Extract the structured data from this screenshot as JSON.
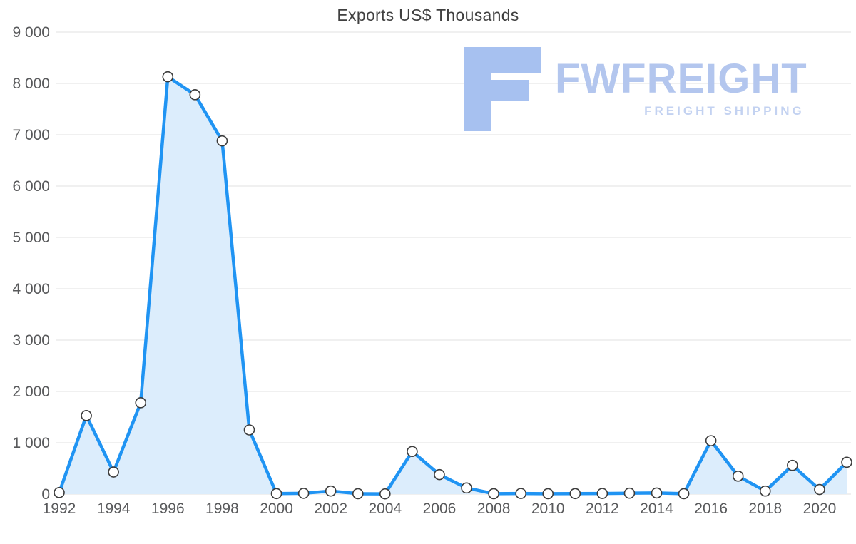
{
  "watermark": {
    "brand": "FWFREIGHT",
    "tagline": "FREIGHT SHIPPING"
  },
  "chart_data": {
    "type": "area",
    "title": "Exports US$ Thousands",
    "x": [
      1992,
      1993,
      1994,
      1995,
      1996,
      1997,
      1998,
      1999,
      2000,
      2001,
      2002,
      2003,
      2004,
      2005,
      2006,
      2007,
      2008,
      2009,
      2010,
      2011,
      2012,
      2013,
      2014,
      2015,
      2016,
      2017,
      2018,
      2019,
      2020,
      2021
    ],
    "values": [
      30,
      1530,
      430,
      1780,
      8130,
      7780,
      6880,
      1250,
      10,
      15,
      60,
      8,
      5,
      830,
      380,
      120,
      8,
      12,
      8,
      10,
      12,
      18,
      22,
      8,
      1040,
      350,
      60,
      560,
      90,
      620
    ],
    "ylim": [
      0,
      9000
    ],
    "y_tick_labels": [
      "0",
      "1 000",
      "2 000",
      "3 000",
      "4 000",
      "5 000",
      "6 000",
      "7 000",
      "8 000",
      "9 000"
    ],
    "x_tick_labels": [
      "1992",
      "1994",
      "1996",
      "1998",
      "2000",
      "2002",
      "2004",
      "2006",
      "2008",
      "2010",
      "2012",
      "2014",
      "2016",
      "2018",
      "2020"
    ],
    "grid": "horizontal",
    "legend": "none",
    "colors": {
      "line": "#2094f3",
      "fill": "#dcedfc",
      "marker_fill": "#ffffff",
      "marker_stroke": "#3c3c3c",
      "grid": "#e1e1e1",
      "axis": "#d7d7d7",
      "tick_text": "#58595b",
      "title_text": "#404040",
      "logo_glyph": "#a7c1f0"
    }
  }
}
